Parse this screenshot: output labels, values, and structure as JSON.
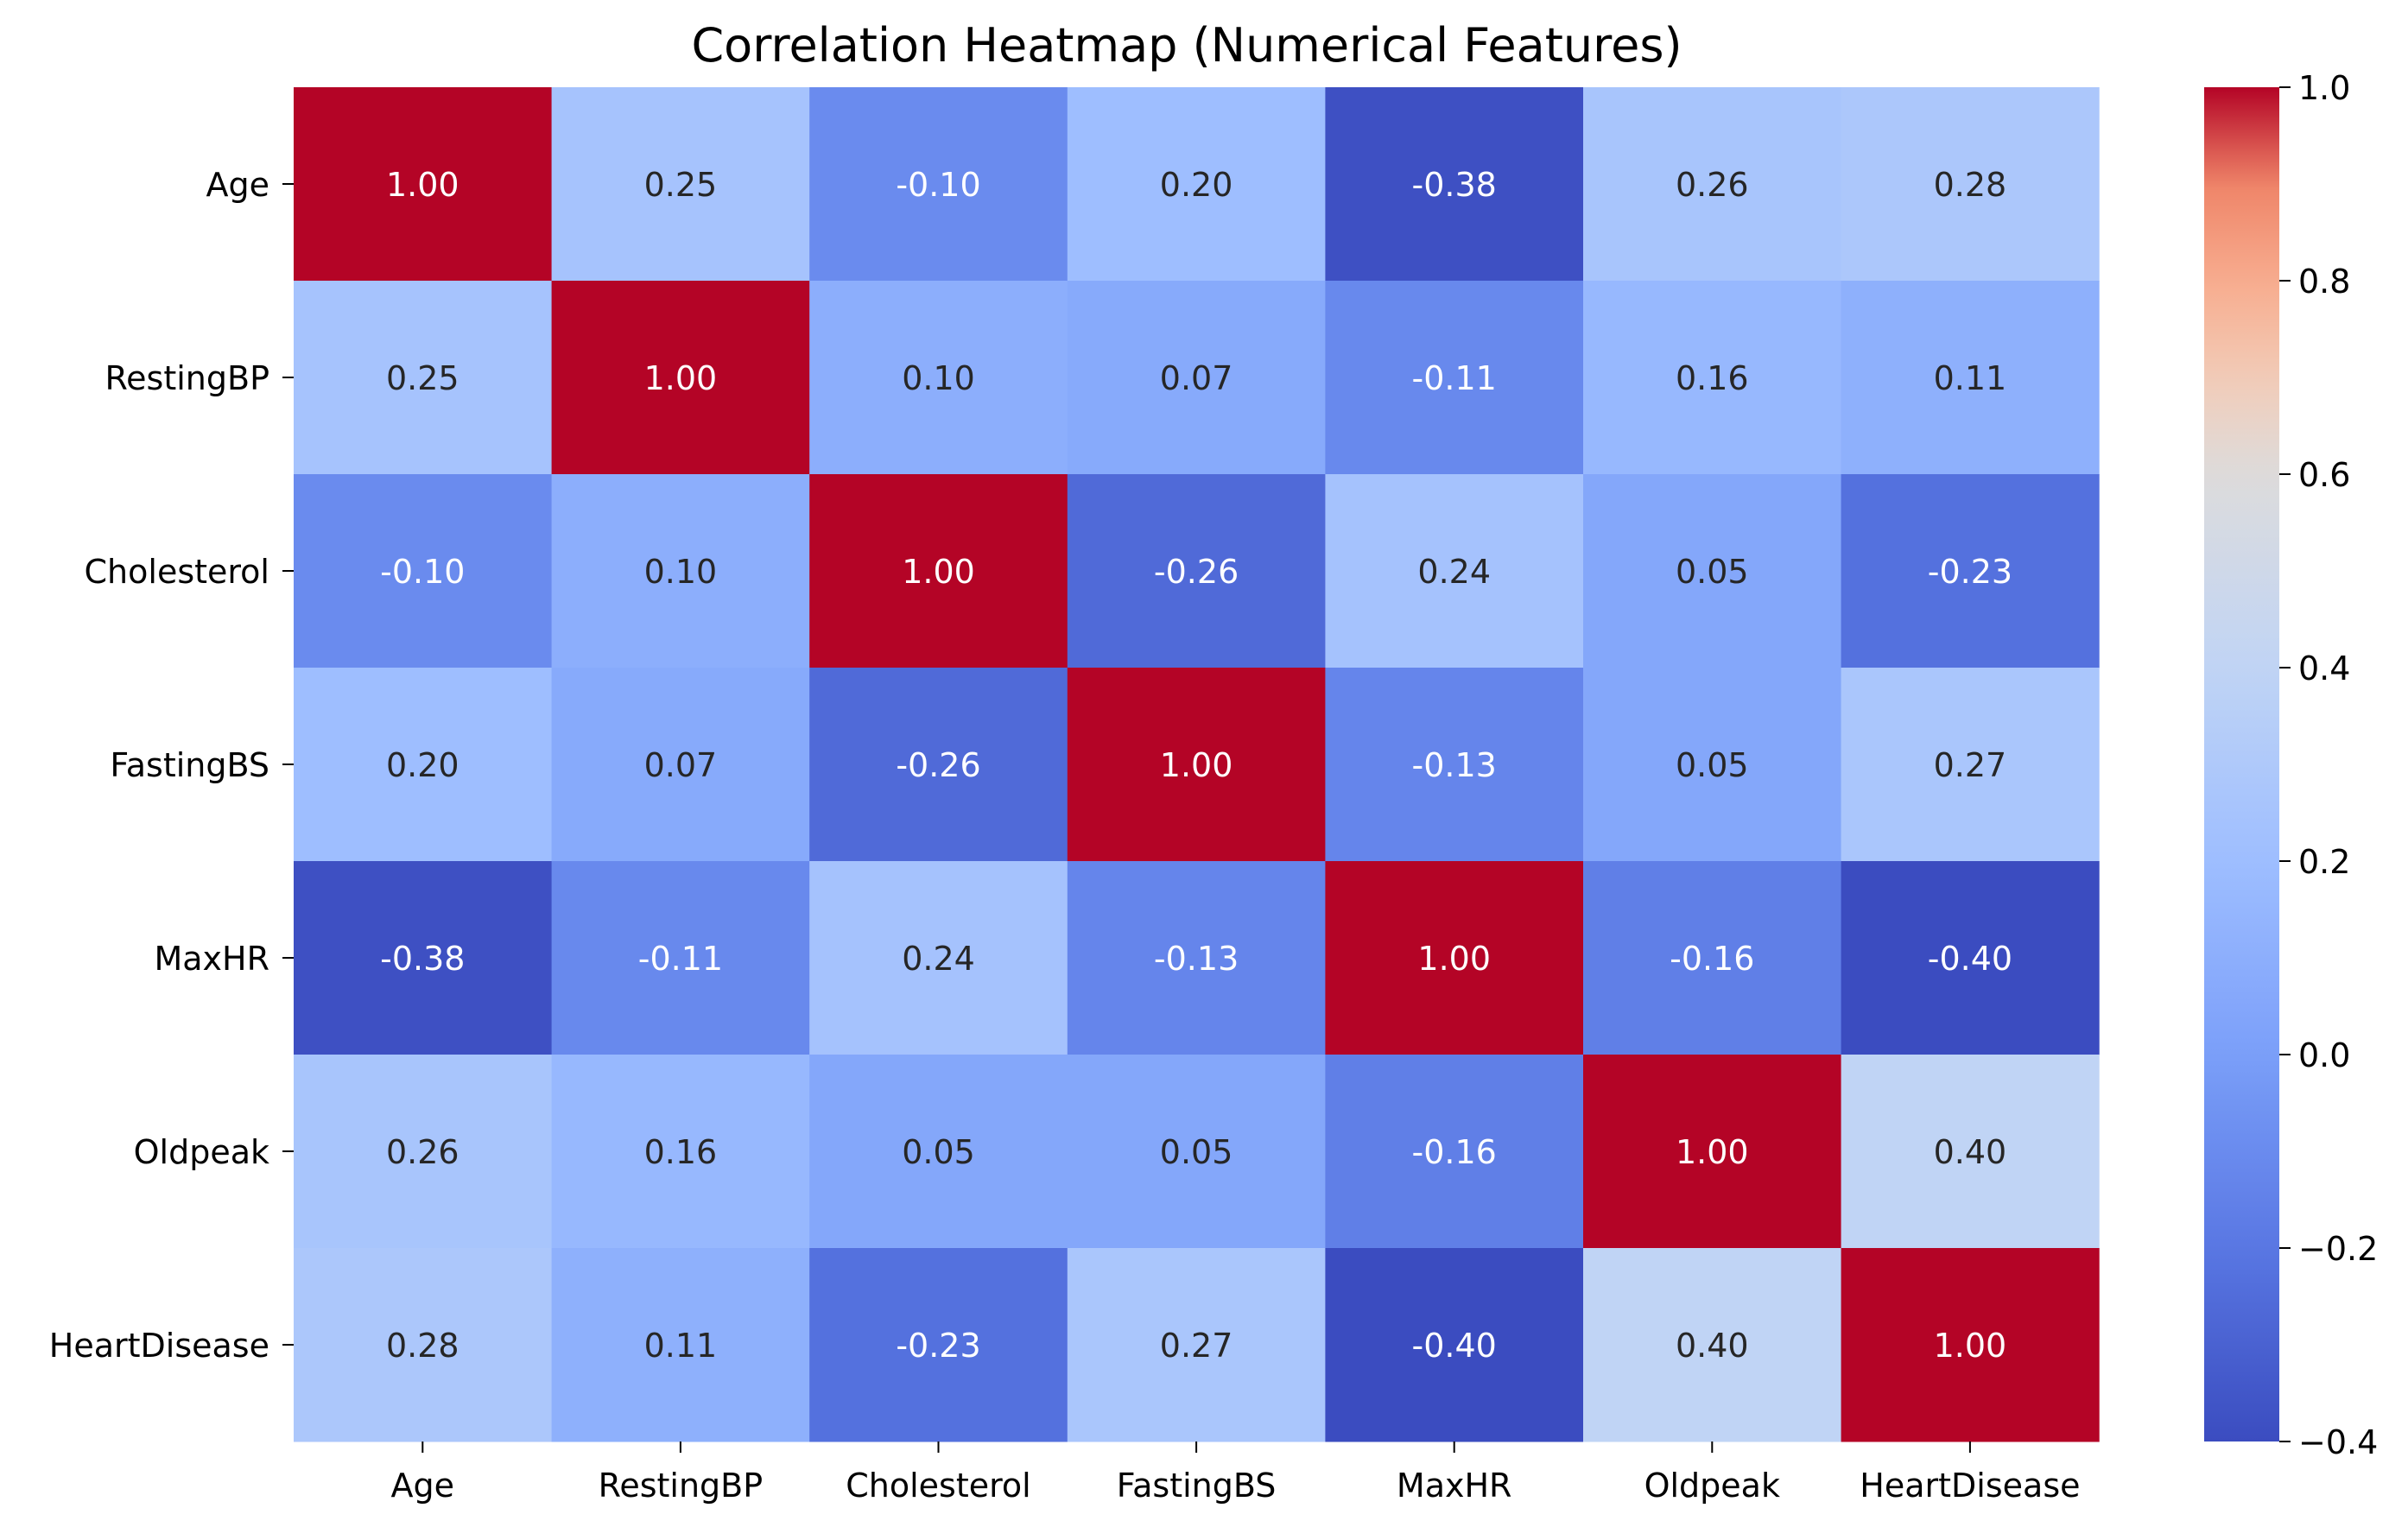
{
  "chart_data": {
    "type": "heatmap",
    "title": "Correlation Heatmap (Numerical Features)",
    "x_labels": [
      "Age",
      "RestingBP",
      "Cholesterol",
      "FastingBS",
      "MaxHR",
      "Oldpeak",
      "HeartDisease"
    ],
    "y_labels": [
      "Age",
      "RestingBP",
      "Cholesterol",
      "FastingBS",
      "MaxHR",
      "Oldpeak",
      "HeartDisease"
    ],
    "values": [
      [
        1.0,
        0.25,
        -0.1,
        0.2,
        -0.38,
        0.26,
        0.28
      ],
      [
        0.25,
        1.0,
        0.1,
        0.07,
        -0.11,
        0.16,
        0.11
      ],
      [
        -0.1,
        0.1,
        1.0,
        -0.26,
        0.24,
        0.05,
        -0.23
      ],
      [
        0.2,
        0.07,
        -0.26,
        1.0,
        -0.13,
        0.05,
        0.27
      ],
      [
        -0.38,
        -0.11,
        0.24,
        -0.13,
        1.0,
        -0.16,
        -0.4
      ],
      [
        0.26,
        0.16,
        0.05,
        0.05,
        -0.16,
        1.0,
        0.4
      ],
      [
        0.28,
        0.11,
        -0.23,
        0.27,
        -0.4,
        0.4,
        1.0
      ]
    ],
    "value_format": "0.00",
    "colormap": "coolwarm",
    "vmin": -0.4,
    "vmax": 1.0,
    "colorbar_ticks": [
      {
        "value": 1.0,
        "label": "1.0"
      },
      {
        "value": 0.8,
        "label": "0.8"
      },
      {
        "value": 0.6,
        "label": "0.6"
      },
      {
        "value": 0.4,
        "label": "0.4"
      },
      {
        "value": 0.2,
        "label": "0.2"
      },
      {
        "value": 0.0,
        "label": "0.0"
      },
      {
        "value": -0.2,
        "label": "−0.2"
      },
      {
        "value": -0.4,
        "label": "−0.4"
      }
    ],
    "colormap_stops": [
      {
        "t": 0.0,
        "color": "#3b4cc0"
      },
      {
        "t": 0.125,
        "color": "#5977e3"
      },
      {
        "t": 0.25,
        "color": "#7b9ff9"
      },
      {
        "t": 0.375,
        "color": "#9ebeff"
      },
      {
        "t": 0.5,
        "color": "#c0d4f5"
      },
      {
        "t": 0.625,
        "color": "#dddcdc"
      },
      {
        "t": 0.75,
        "color": "#f2cbb7"
      },
      {
        "t": 0.875,
        "color": "#f7ac8e"
      },
      {
        "t": 1.0,
        "color": "#ee8468"
      }
    ],
    "text_colors": {
      "light": "#ffffff",
      "dark": "#262626"
    }
  }
}
